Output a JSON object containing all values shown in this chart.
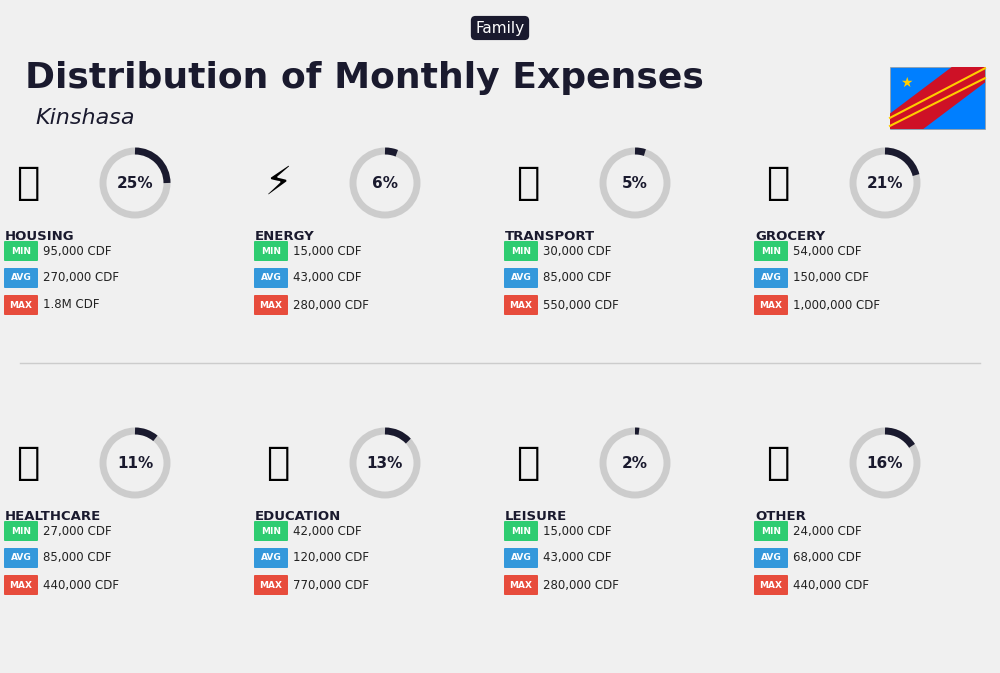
{
  "title": "Distribution of Monthly Expenses",
  "subtitle": "Kinshasa",
  "tag": "Family",
  "bg_color": "#f0f0f0",
  "categories": [
    {
      "name": "HOUSING",
      "pct": 25,
      "min": "95,000 CDF",
      "avg": "270,000 CDF",
      "max": "1.8M CDF",
      "col": 0,
      "row": 0,
      "emoji": "🏢"
    },
    {
      "name": "ENERGY",
      "pct": 6,
      "min": "15,000 CDF",
      "avg": "43,000 CDF",
      "max": "280,000 CDF",
      "col": 1,
      "row": 0,
      "emoji": "⚡"
    },
    {
      "name": "TRANSPORT",
      "pct": 5,
      "min": "30,000 CDF",
      "avg": "85,000 CDF",
      "max": "550,000 CDF",
      "col": 2,
      "row": 0,
      "emoji": "🚌"
    },
    {
      "name": "GROCERY",
      "pct": 21,
      "min": "54,000 CDF",
      "avg": "150,000 CDF",
      "max": "1,000,000 CDF",
      "col": 3,
      "row": 0,
      "emoji": "🛒"
    },
    {
      "name": "HEALTHCARE",
      "pct": 11,
      "min": "27,000 CDF",
      "avg": "85,000 CDF",
      "max": "440,000 CDF",
      "col": 0,
      "row": 1,
      "emoji": "🏥"
    },
    {
      "name": "EDUCATION",
      "pct": 13,
      "min": "42,000 CDF",
      "avg": "120,000 CDF",
      "max": "770,000 CDF",
      "col": 1,
      "row": 1,
      "emoji": "🎓"
    },
    {
      "name": "LEISURE",
      "pct": 2,
      "min": "15,000 CDF",
      "avg": "43,000 CDF",
      "max": "280,000 CDF",
      "col": 2,
      "row": 1,
      "emoji": "🛍"
    },
    {
      "name": "OTHER",
      "pct": 16,
      "min": "24,000 CDF",
      "avg": "68,000 CDF",
      "max": "440,000 CDF",
      "col": 3,
      "row": 1,
      "emoji": "💰"
    }
  ],
  "min_color": "#2ecc71",
  "avg_color": "#3498db",
  "max_color": "#e74c3c",
  "tag_bg": "#1a1a2e",
  "tag_color": "#ffffff",
  "title_color": "#1a1a2e",
  "category_color": "#1a1a2e",
  "pct_color": "#1a1a2e",
  "circle_color": "#cccccc",
  "circle_accent": "#1a1a2e"
}
